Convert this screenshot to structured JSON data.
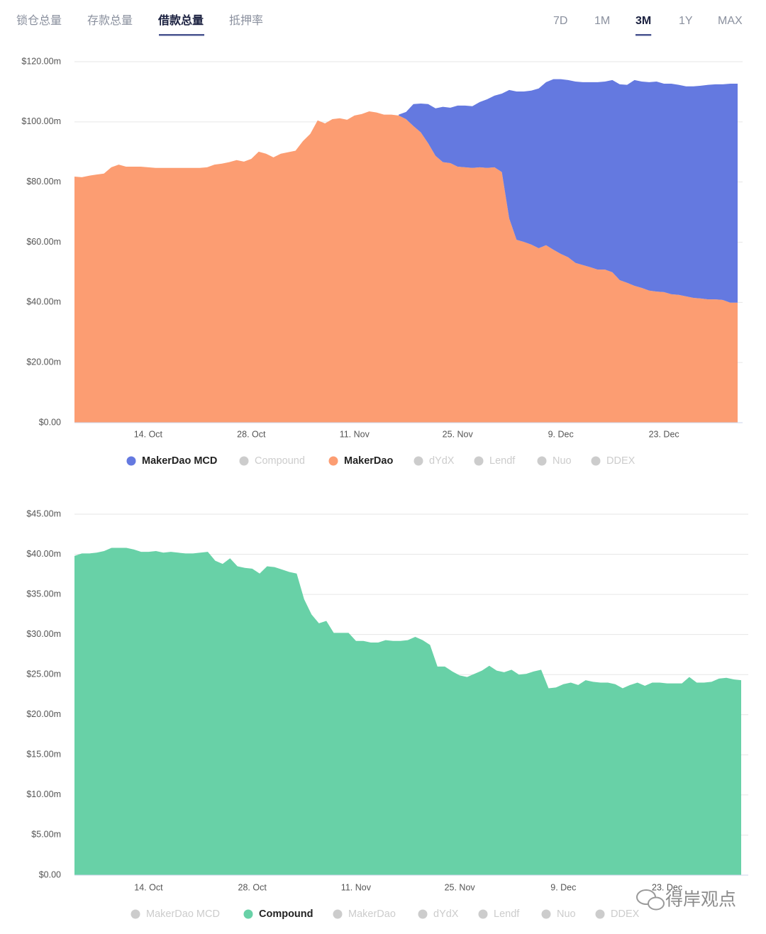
{
  "tabs": [
    "锁仓总量",
    "存款总量",
    "借款总量",
    "抵押率"
  ],
  "active_tab": 2,
  "ranges": [
    "7D",
    "1M",
    "3M",
    "1Y",
    "MAX"
  ],
  "active_range": 2,
  "watermark": "得岸观点",
  "chart_data": [
    {
      "type": "stacked-area",
      "categories": [
        null,
        null,
        null,
        null,
        null,
        null,
        null,
        null,
        null,
        null,
        "14. Oct",
        null,
        null,
        null,
        null,
        null,
        null,
        null,
        null,
        null,
        null,
        null,
        null,
        null,
        "28. Oct",
        null,
        null,
        null,
        null,
        null,
        null,
        null,
        null,
        null,
        null,
        null,
        null,
        null,
        "11. Nov",
        null,
        null,
        null,
        null,
        null,
        null,
        null,
        null,
        null,
        null,
        null,
        null,
        null,
        "25. Nov",
        null,
        null,
        null,
        null,
        null,
        null,
        null,
        null,
        null,
        null,
        null,
        null,
        null,
        "9. Dec",
        null,
        null,
        null,
        null,
        null,
        null,
        null,
        null,
        null,
        null,
        null,
        null,
        null,
        "23. Dec",
        null,
        null,
        null,
        null,
        null,
        null,
        null,
        null,
        null,
        null
      ],
      "ylim": [
        0,
        120
      ],
      "yticks": [
        {
          "value": 0,
          "label": "$0.00"
        },
        {
          "value": 20,
          "label": "$20.00m"
        },
        {
          "value": 40,
          "label": "$40.00m"
        },
        {
          "value": 60,
          "label": "$60.00m"
        },
        {
          "value": 80,
          "label": "$80.00m"
        },
        {
          "value": 100,
          "label": "$100.00m"
        },
        {
          "value": 120,
          "label": "$120.00m"
        }
      ],
      "grid": true,
      "series": [
        {
          "name": "MakerDao MCD",
          "color": "#6479e0",
          "visible": true,
          "values": [
            null,
            null,
            null,
            null,
            null,
            null,
            null,
            null,
            null,
            null,
            null,
            null,
            null,
            null,
            null,
            null,
            null,
            null,
            null,
            null,
            null,
            null,
            null,
            null,
            null,
            null,
            null,
            null,
            null,
            null,
            null,
            null,
            null,
            null,
            null,
            null,
            null,
            null,
            null,
            null,
            null,
            null,
            null,
            null,
            0.3,
            2.4,
            7.3,
            9.6,
            13.0,
            15.8,
            18.4,
            18.4,
            20.3,
            20.5,
            20.5,
            21.7,
            22.8,
            23.8,
            26.1,
            42.7,
            49.3,
            50.0,
            51.2,
            53.1,
            54.2,
            56.7,
            58.1,
            58.9,
            60.3,
            60.8,
            61.5,
            62.3,
            62.5,
            63.9,
            65.1,
            65.8,
            68.4,
            68.6,
            69.3,
            69.8,
            69.3,
            70.0,
            69.8,
            69.8,
            70.3,
            70.7,
            71.3,
            71.5,
            71.7,
            72.8,
            72.8
          ]
        },
        {
          "name": "Compound",
          "color": "#cccccc",
          "visible": false
        },
        {
          "name": "MakerDao",
          "color": "#fc9d72",
          "visible": true,
          "values": [
            81.8,
            81.6,
            82.1,
            82.5,
            82.8,
            84.9,
            85.8,
            85.1,
            85.1,
            85.1,
            84.9,
            84.7,
            84.7,
            84.7,
            84.7,
            84.7,
            84.7,
            84.7,
            84.9,
            85.8,
            86.1,
            86.6,
            87.3,
            86.8,
            87.7,
            90.1,
            89.4,
            88.2,
            89.4,
            89.9,
            90.4,
            93.6,
            96.0,
            100.5,
            99.5,
            100.9,
            101.2,
            100.7,
            102.1,
            102.6,
            103.5,
            103.1,
            102.4,
            102.4,
            102.1,
            100.9,
            98.6,
            96.5,
            92.9,
            88.7,
            86.6,
            86.3,
            85.1,
            84.9,
            84.7,
            84.9,
            84.7,
            84.9,
            83.3,
            67.9,
            60.8,
            60.1,
            59.2,
            58.0,
            59.0,
            57.5,
            56.1,
            55.0,
            53.1,
            52.4,
            51.7,
            50.9,
            50.9,
            50.0,
            47.4,
            46.5,
            45.5,
            44.8,
            43.9,
            43.6,
            43.4,
            42.7,
            42.5,
            42.0,
            41.5,
            41.3,
            41.0,
            41.0,
            40.8,
            39.9,
            39.9
          ]
        },
        {
          "name": "dYdX",
          "color": "#cccccc",
          "visible": false
        },
        {
          "name": "Lendf",
          "color": "#cccccc",
          "visible": false
        },
        {
          "name": "Nuo",
          "color": "#cccccc",
          "visible": false
        },
        {
          "name": "DDEX",
          "color": "#cccccc",
          "visible": false
        }
      ]
    },
    {
      "type": "stacked-area",
      "categories": [
        null,
        null,
        null,
        null,
        null,
        null,
        null,
        null,
        null,
        null,
        "14. Oct",
        null,
        null,
        null,
        null,
        null,
        null,
        null,
        null,
        null,
        null,
        null,
        null,
        null,
        "28. Oct",
        null,
        null,
        null,
        null,
        null,
        null,
        null,
        null,
        null,
        null,
        null,
        null,
        null,
        "11. Nov",
        null,
        null,
        null,
        null,
        null,
        null,
        null,
        null,
        null,
        null,
        null,
        null,
        null,
        "25. Nov",
        null,
        null,
        null,
        null,
        null,
        null,
        null,
        null,
        null,
        null,
        null,
        null,
        null,
        "9. Dec",
        null,
        null,
        null,
        null,
        null,
        null,
        null,
        null,
        null,
        null,
        null,
        null,
        null,
        "23. Dec",
        null,
        null,
        null,
        null,
        null,
        null,
        null,
        null,
        null,
        null
      ],
      "ylim": [
        0,
        45
      ],
      "yticks": [
        {
          "value": 0,
          "label": "$0.00"
        },
        {
          "value": 5,
          "label": "$5.00m"
        },
        {
          "value": 10,
          "label": "$10.00m"
        },
        {
          "value": 15,
          "label": "$15.00m"
        },
        {
          "value": 20,
          "label": "$20.00m"
        },
        {
          "value": 25,
          "label": "$25.00m"
        },
        {
          "value": 30,
          "label": "$30.00m"
        },
        {
          "value": 35,
          "label": "$35.00m"
        },
        {
          "value": 40,
          "label": "$40.00m"
        },
        {
          "value": 45,
          "label": "$45.00m"
        }
      ],
      "grid": true,
      "series": [
        {
          "name": "MakerDao MCD",
          "color": "#cccccc",
          "visible": false
        },
        {
          "name": "Compound",
          "color": "#68d1a7",
          "visible": true,
          "values": [
            39.8,
            40.1,
            40.1,
            40.2,
            40.4,
            40.8,
            40.8,
            40.8,
            40.6,
            40.3,
            40.3,
            40.4,
            40.2,
            40.3,
            40.2,
            40.1,
            40.1,
            40.2,
            40.3,
            39.2,
            38.8,
            39.5,
            38.5,
            38.3,
            38.2,
            37.6,
            38.5,
            38.4,
            38.1,
            37.8,
            37.6,
            34.4,
            32.5,
            31.4,
            31.7,
            30.2,
            30.2,
            30.2,
            29.2,
            29.2,
            29.0,
            29.0,
            29.3,
            29.2,
            29.2,
            29.3,
            29.7,
            29.3,
            28.7,
            26.0,
            26.0,
            25.4,
            24.9,
            24.7,
            25.1,
            25.5,
            26.1,
            25.5,
            25.3,
            25.6,
            25.0,
            25.1,
            25.4,
            25.6,
            23.3,
            23.4,
            23.8,
            24.0,
            23.7,
            24.3,
            24.1,
            24.0,
            24.0,
            23.8,
            23.3,
            23.7,
            24.0,
            23.6,
            24.0,
            24.0,
            23.9,
            23.9,
            23.9,
            24.7,
            24.0,
            24.0,
            24.1,
            24.5,
            24.6,
            24.4,
            24.3
          ]
        },
        {
          "name": "MakerDao",
          "color": "#cccccc",
          "visible": false
        },
        {
          "name": "dYdX",
          "color": "#cccccc",
          "visible": false
        },
        {
          "name": "Lendf",
          "color": "#cccccc",
          "visible": false
        },
        {
          "name": "Nuo",
          "color": "#cccccc",
          "visible": false
        },
        {
          "name": "DDEX",
          "color": "#cccccc",
          "visible": false
        }
      ]
    }
  ]
}
